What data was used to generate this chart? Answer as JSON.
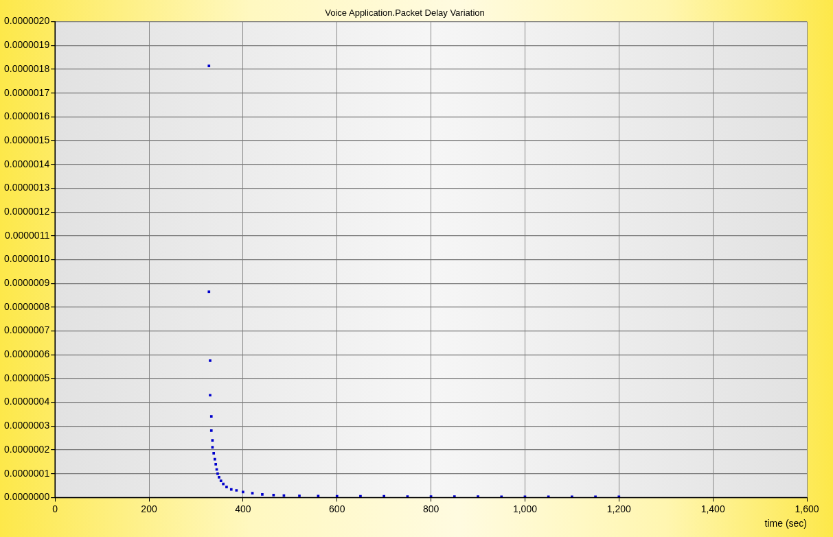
{
  "chart_data": {
    "type": "scatter",
    "title": "Voice Application.Packet Delay Variation",
    "xlabel": "time (sec)",
    "xlim": [
      0,
      1600
    ],
    "xticks": [
      0,
      200,
      400,
      600,
      800,
      {
        "value": 1000,
        "label": "1,000"
      },
      {
        "value": 1200,
        "label": "1,200"
      },
      {
        "value": 1400,
        "label": "1,400"
      },
      {
        "value": 1600,
        "label": "1,600"
      }
    ],
    "ylim": [
      0,
      2e-06
    ],
    "yticks": [
      {
        "value": 0,
        "label": "0.0000000"
      },
      {
        "value": 1e-07,
        "label": "0.0000001"
      },
      {
        "value": 2e-07,
        "label": "0.0000002"
      },
      {
        "value": 3e-07,
        "label": "0.0000003"
      },
      {
        "value": 4e-07,
        "label": "0.0000004"
      },
      {
        "value": 5e-07,
        "label": "0.0000005"
      },
      {
        "value": 6e-07,
        "label": "0.0000006"
      },
      {
        "value": 7e-07,
        "label": "0.0000007"
      },
      {
        "value": 8e-07,
        "label": "0.0000008"
      },
      {
        "value": 9e-07,
        "label": "0.0000009"
      },
      {
        "value": 1e-06,
        "label": "0.0000010"
      },
      {
        "value": 1.1e-06,
        "label": "0.0000011"
      },
      {
        "value": 1.2e-06,
        "label": "0.0000012"
      },
      {
        "value": 1.3e-06,
        "label": "0.0000013"
      },
      {
        "value": 1.4e-06,
        "label": "0.0000014"
      },
      {
        "value": 1.5e-06,
        "label": "0.0000015"
      },
      {
        "value": 1.6e-06,
        "label": "0.0000016"
      },
      {
        "value": 1.7e-06,
        "label": "0.0000017"
      },
      {
        "value": 1.8e-06,
        "label": "0.0000018"
      },
      {
        "value": 1.9e-06,
        "label": "0.0000019"
      },
      {
        "value": 2e-06,
        "label": "0.0000020"
      }
    ],
    "grid": true,
    "legend": false,
    "marker": "square",
    "series": [
      {
        "color": "#0000cc",
        "x": [
          327.5,
          327.5,
          330,
          330,
          332.6,
          332.6,
          335,
          335,
          337.6,
          340,
          342,
          344,
          346,
          349,
          353,
          358,
          365,
          375,
          386,
          400,
          420,
          441,
          465,
          487,
          520,
          560,
          600,
          650,
          700,
          750,
          800,
          850,
          900,
          950,
          1000,
          1050,
          1100,
          1150,
          1200
        ],
        "values": [
          1.814e-06,
          8.65e-07,
          5.75e-07,
          4.3e-07,
          3.41e-07,
          2.81e-07,
          2.4e-07,
          2.11e-07,
          1.86e-07,
          1.61e-07,
          1.4e-07,
          1.18e-07,
          1e-07,
          8.5e-08,
          7e-08,
          5.7e-08,
          4.4e-08,
          3.4e-08,
          3e-08,
          2.3e-08,
          1.8e-08,
          1.3e-08,
          1e-08,
          8e-09,
          7e-09,
          6e-09,
          5e-09,
          5e-09,
          5e-09,
          4e-09,
          4e-09,
          4e-09,
          4e-09,
          3e-09,
          3e-09,
          3e-09,
          3e-09,
          3e-09,
          3e-09
        ]
      }
    ]
  }
}
